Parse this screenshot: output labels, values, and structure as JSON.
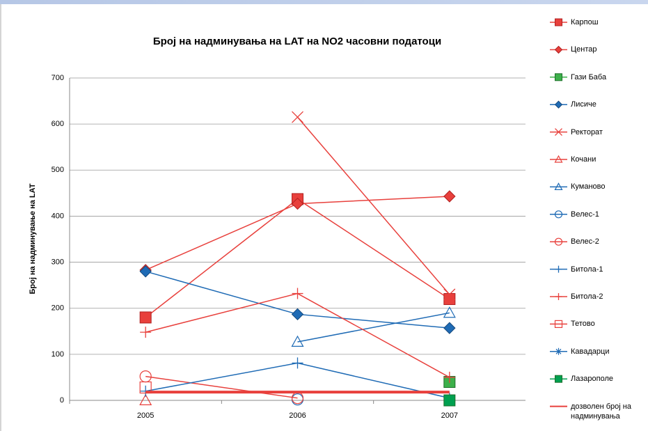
{
  "chart_data": {
    "type": "line",
    "title": "Број на надминувања  на LAT на NO2 часовни податоци",
    "y_label": "Број на надминување на LAT",
    "categories": [
      "2005",
      "2006",
      "2007"
    ],
    "ylim": [
      0,
      700
    ],
    "yticks": [
      0,
      100,
      200,
      300,
      400,
      500,
      600,
      700
    ],
    "grid": true,
    "series": [
      {
        "name": "Карпош",
        "color": "#e8403c",
        "marker": "square",
        "values": [
          180,
          437,
          220
        ]
      },
      {
        "name": "Центар",
        "color": "#e8403c",
        "marker": "diamond",
        "values": [
          283,
          427,
          443
        ]
      },
      {
        "name": "Гази Баба",
        "color": "#3cb04a",
        "marker": "square",
        "values": [
          null,
          null,
          40
        ]
      },
      {
        "name": "Лисиче",
        "color": "#1f6bb5",
        "marker": "diamond",
        "values": [
          280,
          187,
          157
        ]
      },
      {
        "name": "Ректорат",
        "color": "#e8403c",
        "marker": "x",
        "values": [
          null,
          615,
          230
        ]
      },
      {
        "name": "Кочани",
        "color": "#e8403c",
        "marker": "triangle-open",
        "values": [
          0,
          null,
          null
        ]
      },
      {
        "name": "Куманово",
        "color": "#1f6bb5",
        "marker": "triangle-open",
        "values": [
          null,
          127,
          190
        ]
      },
      {
        "name": "Велес-1",
        "color": "#1f6bb5",
        "marker": "circle-open",
        "values": [
          null,
          2,
          null
        ]
      },
      {
        "name": "Велес-2",
        "color": "#e8403c",
        "marker": "circle-open",
        "values": [
          52,
          5,
          null
        ]
      },
      {
        "name": "Битола-1",
        "color": "#1f6bb5",
        "marker": "plus",
        "values": [
          20,
          81,
          5
        ]
      },
      {
        "name": "Битола-2",
        "color": "#e8403c",
        "marker": "plus",
        "values": [
          148,
          232,
          50
        ]
      },
      {
        "name": "Тетово",
        "color": "#e8403c",
        "marker": "square-open",
        "values": [
          28,
          null,
          null
        ]
      },
      {
        "name": "Кавадарци",
        "color": "#1f6bb5",
        "marker": "asterisk",
        "values": [
          null,
          null,
          null
        ]
      },
      {
        "name": "Лазарополе",
        "color": "#00a050",
        "marker": "square",
        "values": [
          null,
          null,
          0
        ]
      },
      {
        "name": "дозволен број на надминувања",
        "color": "#e8403c",
        "marker": "none",
        "line_width": 4,
        "values": [
          18,
          18,
          18
        ]
      }
    ]
  }
}
